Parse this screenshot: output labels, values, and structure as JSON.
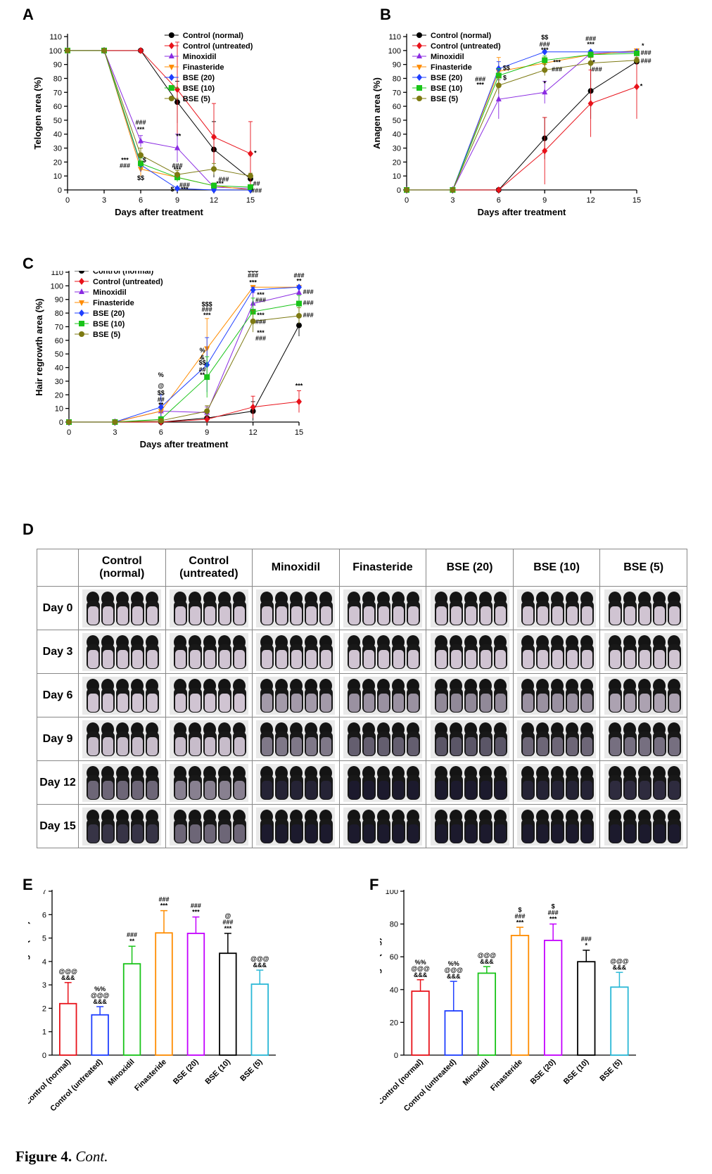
{
  "panels": {
    "A": "A",
    "B": "B",
    "C": "C",
    "D": "D",
    "E": "E",
    "F": "F"
  },
  "colors": {
    "Control (normal)": "#000000",
    "Control (untreated)": "#e8121a",
    "Minoxidil": "#8a2be2",
    "Finasteride": "#ff8c00",
    "BSE (20)": "#1f3fff",
    "BSE (10)": "#19c419",
    "BSE (5)": "#7d7a12"
  },
  "chart_data": [
    {
      "id": "A",
      "type": "line",
      "title": "",
      "xlabel": "Days after treatment",
      "ylabel": "Telogen area (%)",
      "x": [
        0,
        3,
        6,
        9,
        12,
        15
      ],
      "ylim": [
        0,
        110
      ],
      "yticks": [
        0,
        10,
        20,
        30,
        40,
        50,
        60,
        70,
        80,
        90,
        100,
        110
      ],
      "series": [
        {
          "name": "Control (normal)",
          "marker": "circle",
          "values": [
            100,
            100,
            100,
            63,
            29,
            8
          ],
          "err": [
            0,
            0,
            0,
            15,
            20,
            2
          ]
        },
        {
          "name": "Control (untreated)",
          "marker": "diamond",
          "values": [
            100,
            100,
            100,
            72,
            38,
            26
          ],
          "err": [
            0,
            0,
            0,
            34,
            24,
            23
          ]
        },
        {
          "name": "Minoxidil",
          "marker": "triangle",
          "values": [
            100,
            100,
            35,
            30,
            2,
            1
          ],
          "err": [
            0,
            0,
            4,
            10,
            2,
            1
          ]
        },
        {
          "name": "Finasteride",
          "marker": "tri-down",
          "values": [
            100,
            100,
            15,
            9,
            3,
            0
          ],
          "err": [
            0,
            0,
            5,
            3,
            2,
            0
          ]
        },
        {
          "name": "BSE (20)",
          "marker": "diamond",
          "values": [
            100,
            100,
            18,
            1,
            0,
            0
          ],
          "err": [
            0,
            0,
            5,
            1,
            0,
            0
          ]
        },
        {
          "name": "BSE (10)",
          "marker": "square",
          "values": [
            100,
            100,
            19,
            9,
            3,
            2
          ],
          "err": [
            0,
            0,
            4,
            3,
            2,
            1
          ]
        },
        {
          "name": "BSE (5)",
          "marker": "circle",
          "values": [
            100,
            100,
            25,
            11,
            15,
            10
          ],
          "err": [
            0,
            0,
            5,
            3,
            4,
            2
          ]
        }
      ],
      "annotations": [
        {
          "text": "###",
          "x": 6,
          "y": 47
        },
        {
          "text": "***",
          "x": 6,
          "y": 42
        },
        {
          "text": "***",
          "x": 4.7,
          "y": 20
        },
        {
          "text": "###",
          "x": 4.7,
          "y": 16
        },
        {
          "text": "$",
          "x": 6.3,
          "y": 20
        },
        {
          "text": "$$",
          "x": 6,
          "y": 7
        },
        {
          "text": "**",
          "x": 9.1,
          "y": 37
        },
        {
          "text": "###",
          "x": 9,
          "y": 16
        },
        {
          "text": "***",
          "x": 9,
          "y": 13
        },
        {
          "text": "$",
          "x": 8.6,
          "y": -1
        },
        {
          "text": "###",
          "x": 9.6,
          "y": 2
        },
        {
          "text": "***",
          "x": 9.6,
          "y": -1
        },
        {
          "text": "###",
          "x": 12.8,
          "y": 6
        },
        {
          "text": "***",
          "x": 12.5,
          "y": 3
        },
        {
          "text": "*",
          "x": 15.4,
          "y": 25
        },
        {
          "text": "##",
          "x": 15.5,
          "y": 3
        },
        {
          "text": "###",
          "x": 15.5,
          "y": -2
        }
      ],
      "legend": "top-right"
    },
    {
      "id": "B",
      "type": "line",
      "title": "",
      "xlabel": "Days after treatment",
      "ylabel": "Anagen area (%)",
      "x": [
        0,
        3,
        6,
        9,
        12,
        15
      ],
      "ylim": [
        0,
        110
      ],
      "yticks": [
        0,
        10,
        20,
        30,
        40,
        50,
        60,
        70,
        80,
        90,
        100,
        110
      ],
      "series": [
        {
          "name": "Control (normal)",
          "marker": "circle",
          "values": [
            0,
            0,
            0,
            37,
            71,
            92
          ],
          "err": [
            0,
            0,
            0,
            15,
            20,
            2
          ]
        },
        {
          "name": "Control (untreated)",
          "marker": "diamond",
          "values": [
            0,
            0,
            0,
            28,
            62,
            74
          ],
          "err": [
            0,
            0,
            0,
            24,
            24,
            23
          ]
        },
        {
          "name": "Minoxidil",
          "marker": "triangle",
          "values": [
            0,
            0,
            65,
            70,
            98,
            99
          ],
          "err": [
            0,
            0,
            14,
            8,
            2,
            1
          ]
        },
        {
          "name": "Finasteride",
          "marker": "tri-down",
          "values": [
            0,
            0,
            85,
            91,
            97,
            100
          ],
          "err": [
            0,
            0,
            10,
            4,
            2,
            0
          ]
        },
        {
          "name": "BSE (20)",
          "marker": "diamond",
          "values": [
            0,
            0,
            87,
            99,
            99,
            99
          ],
          "err": [
            0,
            0,
            5,
            1,
            1,
            0
          ]
        },
        {
          "name": "BSE (10)",
          "marker": "square",
          "values": [
            0,
            0,
            82,
            93,
            97,
            98
          ],
          "err": [
            0,
            0,
            5,
            3,
            2,
            1
          ]
        },
        {
          "name": "BSE (5)",
          "marker": "circle",
          "values": [
            0,
            0,
            75,
            86,
            91,
            93
          ],
          "err": [
            0,
            0,
            6,
            4,
            4,
            2
          ]
        }
      ],
      "annotations": [
        {
          "text": "###",
          "x": 4.8,
          "y": 78
        },
        {
          "text": "***",
          "x": 4.8,
          "y": 74
        },
        {
          "text": "$$",
          "x": 6.5,
          "y": 86
        },
        {
          "text": "$",
          "x": 6.4,
          "y": 79
        },
        {
          "text": "$$",
          "x": 9,
          "y": 108
        },
        {
          "text": "###",
          "x": 9,
          "y": 103
        },
        {
          "text": "***",
          "x": 9,
          "y": 99
        },
        {
          "text": "***",
          "x": 9.8,
          "y": 90
        },
        {
          "text": "###",
          "x": 9.8,
          "y": 85
        },
        {
          "text": "*",
          "x": 9,
          "y": 75
        },
        {
          "text": "###",
          "x": 12,
          "y": 107
        },
        {
          "text": "***",
          "x": 12,
          "y": 103
        },
        {
          "text": "*",
          "x": 12.2,
          "y": 90
        },
        {
          "text": "###",
          "x": 12.4,
          "y": 85
        },
        {
          "text": "*",
          "x": 15.4,
          "y": 102
        },
        {
          "text": "###",
          "x": 15.6,
          "y": 97
        },
        {
          "text": "###",
          "x": 15.6,
          "y": 91
        },
        {
          "text": "*",
          "x": 15.3,
          "y": 73
        }
      ],
      "legend": "top-left"
    },
    {
      "id": "C",
      "type": "line",
      "title": "",
      "xlabel": "Days after treatment",
      "ylabel": "Hair regrowth area (%)",
      "x": [
        0,
        3,
        6,
        9,
        12,
        15
      ],
      "ylim": [
        0,
        110
      ],
      "yticks": [
        0,
        10,
        20,
        30,
        40,
        50,
        60,
        70,
        80,
        90,
        100,
        110
      ],
      "series": [
        {
          "name": "Control (normal)",
          "marker": "circle",
          "values": [
            0,
            0,
            0,
            3,
            8,
            71
          ],
          "err": [
            0,
            0,
            0,
            3,
            7,
            8
          ]
        },
        {
          "name": "Control (untreated)",
          "marker": "diamond",
          "values": [
            0,
            0,
            0,
            2,
            11,
            15
          ],
          "err": [
            0,
            0,
            0,
            2,
            8,
            8
          ]
        },
        {
          "name": "Minoxidil",
          "marker": "triangle",
          "values": [
            0,
            0,
            8,
            7,
            87,
            95
          ],
          "err": [
            0,
            0,
            5,
            4,
            8,
            4
          ]
        },
        {
          "name": "Finasteride",
          "marker": "tri-down",
          "values": [
            0,
            0,
            8,
            54,
            99,
            99
          ],
          "err": [
            0,
            0,
            5,
            22,
            1,
            1
          ]
        },
        {
          "name": "BSE (20)",
          "marker": "diamond",
          "values": [
            0,
            0,
            11,
            42,
            97,
            99
          ],
          "err": [
            0,
            0,
            9,
            20,
            2,
            1
          ]
        },
        {
          "name": "BSE (10)",
          "marker": "square",
          "values": [
            0,
            0,
            2,
            33,
            81,
            87
          ],
          "err": [
            0,
            0,
            2,
            15,
            10,
            6
          ]
        },
        {
          "name": "BSE (5)",
          "marker": "circle",
          "values": [
            0,
            0,
            1,
            8,
            74,
            78
          ],
          "err": [
            0,
            0,
            1,
            4,
            8,
            6
          ]
        }
      ],
      "annotations": [
        {
          "text": "%",
          "x": 6,
          "y": 33
        },
        {
          "text": "@",
          "x": 6,
          "y": 25
        },
        {
          "text": "$$",
          "x": 6,
          "y": 20
        },
        {
          "text": "##",
          "x": 6,
          "y": 15
        },
        {
          "text": "**",
          "x": 6,
          "y": 11
        },
        {
          "text": "%",
          "x": 8.7,
          "y": 51
        },
        {
          "text": "&",
          "x": 8.7,
          "y": 46
        },
        {
          "text": "$$",
          "x": 8.7,
          "y": 42
        },
        {
          "text": "##",
          "x": 8.7,
          "y": 37
        },
        {
          "text": "**",
          "x": 8.7,
          "y": 33
        },
        {
          "text": "$$$",
          "x": 9,
          "y": 85
        },
        {
          "text": "###",
          "x": 9,
          "y": 81
        },
        {
          "text": "***",
          "x": 9,
          "y": 77
        },
        {
          "text": "$$$",
          "x": 12,
          "y": 110
        },
        {
          "text": "###",
          "x": 12,
          "y": 106
        },
        {
          "text": "***",
          "x": 12,
          "y": 101
        },
        {
          "text": "***",
          "x": 12.5,
          "y": 92
        },
        {
          "text": "###",
          "x": 12.5,
          "y": 88
        },
        {
          "text": "***",
          "x": 12.5,
          "y": 77
        },
        {
          "text": "###",
          "x": 12.5,
          "y": 72
        },
        {
          "text": "***",
          "x": 12.5,
          "y": 64
        },
        {
          "text": "###",
          "x": 12.5,
          "y": 60
        },
        {
          "text": "###",
          "x": 15,
          "y": 106
        },
        {
          "text": "**",
          "x": 15,
          "y": 102
        },
        {
          "text": "###",
          "x": 15.6,
          "y": 94
        },
        {
          "text": "###",
          "x": 15.6,
          "y": 86
        },
        {
          "text": "###",
          "x": 15.6,
          "y": 77
        },
        {
          "text": "***",
          "x": 15,
          "y": 25
        }
      ],
      "legend": "top-left"
    },
    {
      "id": "E",
      "type": "bar",
      "title": "",
      "xlabel": "",
      "ylabel": "Hair follicle length (mm)",
      "categories": [
        "Control (normal)",
        "Control (untreated)",
        "Minoxidil",
        "Finasteride",
        "BSE (20)",
        "BSE (10)",
        "BSE (5)"
      ],
      "values": [
        2.2,
        1.72,
        3.9,
        5.22,
        5.2,
        4.35,
        3.03
      ],
      "err": [
        0.9,
        0.35,
        0.75,
        0.95,
        0.7,
        0.85,
        0.6
      ],
      "ylim": [
        0,
        7
      ],
      "yticks": [
        0,
        1,
        2,
        3,
        4,
        5,
        6,
        7
      ],
      "labels": [
        [
          "@@@",
          "&&&"
        ],
        [
          "%%",
          "@@@",
          "&&&"
        ],
        [
          "###",
          "**"
        ],
        [
          "###",
          "***"
        ],
        [
          "###",
          "***"
        ],
        [
          "@",
          "###",
          "***"
        ],
        [
          "@@@",
          "&&&"
        ]
      ]
    },
    {
      "id": "F",
      "type": "bar",
      "title": "",
      "xlabel": "",
      "ylabel": "Hair weight (mg)",
      "categories": [
        "Control (normal)",
        "Control (untreated)",
        "Minoxidil",
        "Finasteride",
        "BSE (20)",
        "BSE (10)",
        "BSE (5)"
      ],
      "values": [
        39,
        27,
        50,
        73,
        70,
        57,
        41.5
      ],
      "err": [
        7,
        18,
        4,
        5,
        10,
        7,
        9
      ],
      "ylim": [
        0,
        100
      ],
      "yticks": [
        0,
        20,
        40,
        60,
        80,
        100
      ],
      "labels": [
        [
          "%%",
          "@@@",
          "&&&"
        ],
        [
          "%%",
          "@@@",
          "&&&"
        ],
        [
          "@@@",
          "&&&"
        ],
        [
          "$",
          "###",
          "***"
        ],
        [
          "$",
          "###",
          "***"
        ],
        [
          "###",
          "*"
        ],
        [
          "@@@",
          "&&&"
        ]
      ]
    }
  ],
  "photo_grid": {
    "columns": [
      "",
      "Control\n(normal)",
      "Control\n(untreated)",
      "Minoxidil",
      "Finasteride",
      "BSE (20)",
      "BSE (10)",
      "BSE (5)"
    ],
    "rows": [
      "Day 0",
      "Day 3",
      "Day 6",
      "Day 9",
      "Day 12",
      "Day 15"
    ],
    "darkness": [
      [
        0,
        0,
        0,
        0,
        0,
        0,
        0
      ],
      [
        0,
        0,
        0,
        0,
        0,
        0,
        0
      ],
      [
        0,
        0,
        0.25,
        0.3,
        0.35,
        0.3,
        0.2
      ],
      [
        0.05,
        0.05,
        0.45,
        0.6,
        0.65,
        0.55,
        0.5
      ],
      [
        0.55,
        0.4,
        0.95,
        1,
        1,
        0.95,
        0.9
      ],
      [
        0.85,
        0.55,
        1,
        1,
        1,
        1,
        1
      ]
    ]
  },
  "caption": {
    "label": "Figure 4.",
    "text": "Cont."
  }
}
